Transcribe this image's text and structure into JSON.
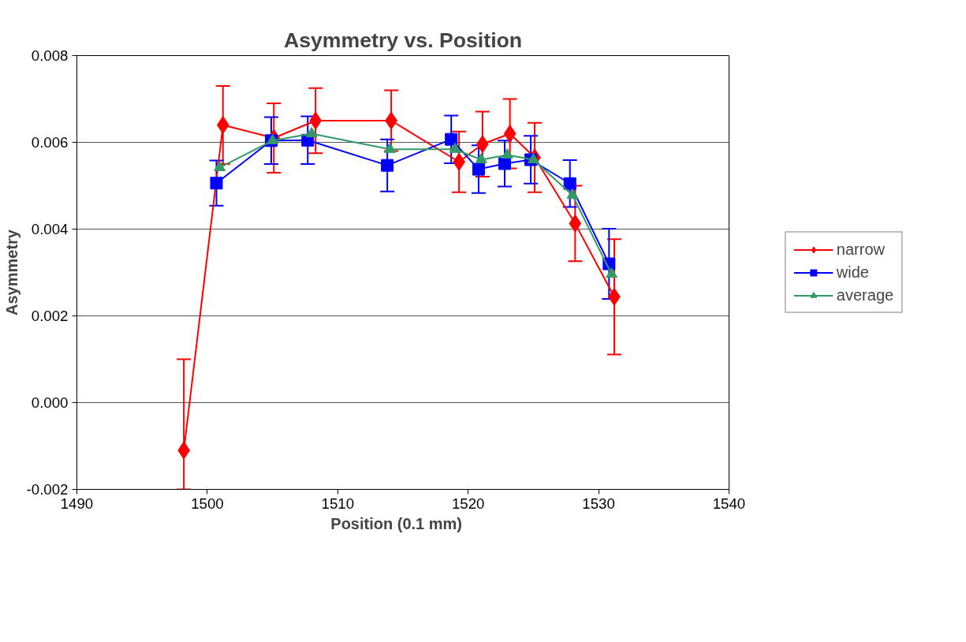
{
  "chart_data": {
    "type": "line",
    "title": "Asymmetry vs. Position",
    "xlabel": "Position    (0.1 mm)",
    "ylabel": "Asymmetry",
    "xlim": [
      1490,
      1540
    ],
    "xticks": [
      1490,
      1500,
      1510,
      1520,
      1530,
      1540
    ],
    "ylim": [
      -0.002,
      0.008
    ],
    "yticks": [
      {
        "value": -0.002,
        "label": "-0.002"
      },
      {
        "value": 0,
        "label": "0.000"
      },
      {
        "value": 0.002,
        "label": "0.002"
      },
      {
        "value": 0.004,
        "label": "0.004"
      },
      {
        "value": 0.006,
        "label": "0.006"
      },
      {
        "value": 0.008,
        "label": "0.008"
      }
    ],
    "grid": "y",
    "legend": "right",
    "line_style": "solid",
    "series": [
      {
        "name": "narrow",
        "color": "#ff0000",
        "marker": "diamond",
        "x": [
          1498.2,
          1501.2,
          1505.1,
          1508.3,
          1514.1,
          1519.3,
          1521.1,
          1523.2,
          1525.1,
          1528.2,
          1531.2
        ],
        "values": [
          -0.0011,
          0.0064,
          0.0061,
          0.0065,
          0.0065,
          0.00555,
          0.00596,
          0.0062,
          0.00565,
          0.00413,
          0.00244
        ],
        "errors": [
          [
            -0.002,
            0.001
          ],
          0.0009,
          0.0008,
          0.00075,
          0.0007,
          0.0007,
          0.00075,
          0.0008,
          0.0008,
          0.00087,
          0.00133
        ]
      },
      {
        "name": "wide",
        "color": "#0000ff",
        "marker": "square",
        "x": [
          1500.7,
          1504.9,
          1507.7,
          1513.8,
          1518.7,
          1520.8,
          1522.8,
          1524.8,
          1527.8,
          1530.8
        ],
        "values": [
          0.00506,
          0.00604,
          0.00605,
          0.00547,
          0.00607,
          0.00538,
          0.00551,
          0.0056,
          0.00505,
          0.0032
        ],
        "errors": [
          0.00052,
          0.00054,
          0.00055,
          0.0006,
          0.00055,
          0.00055,
          0.00053,
          0.00055,
          0.00054,
          0.00081
        ]
      },
      {
        "name": "average",
        "color": "#339966",
        "marker": "triangle",
        "x": [
          1500.95,
          1505.0,
          1508.0,
          1514.0,
          1519.0,
          1521.0,
          1523.0,
          1525.0,
          1528.0,
          1531.0
        ],
        "values": [
          0.00542,
          0.00604,
          0.0062,
          0.00584,
          0.00584,
          0.0056,
          0.00571,
          0.0056,
          0.00478,
          0.00296
        ]
      }
    ]
  }
}
